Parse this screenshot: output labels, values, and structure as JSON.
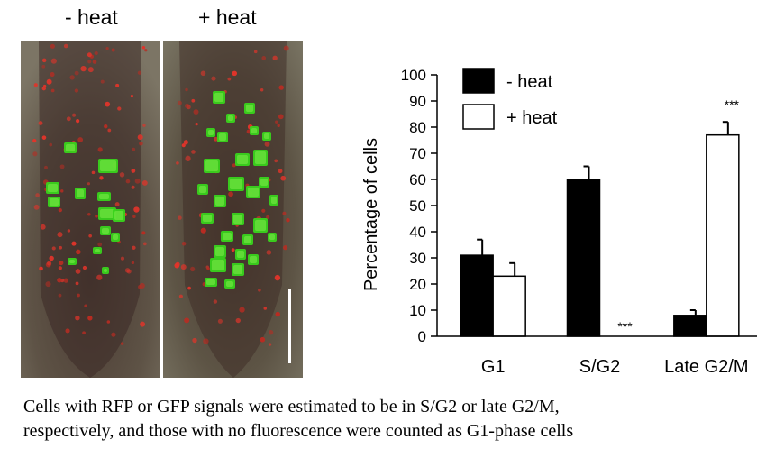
{
  "panels": {
    "left_label": "- heat",
    "right_label": "+ heat"
  },
  "chart_data": {
    "type": "bar",
    "categories": [
      "G1",
      "S/G2",
      "Late G2/M"
    ],
    "series": [
      {
        "name": "- heat",
        "values": [
          31,
          60,
          8
        ],
        "errors": [
          6,
          5,
          2
        ],
        "color": "#000000"
      },
      {
        "name": "+ heat",
        "values": [
          23,
          0,
          77
        ],
        "errors": [
          5,
          0,
          5
        ],
        "color": "#ffffff"
      }
    ],
    "significance": [
      {
        "category": "S/G2",
        "series": "+ heat",
        "label": "***"
      },
      {
        "category": "Late G2/M",
        "series": "+ heat",
        "label": "***"
      }
    ],
    "ylabel": "Percentage of cells",
    "xlabel": "",
    "ylim": [
      0,
      100
    ],
    "yticks": [
      0,
      10,
      20,
      30,
      40,
      50,
      60,
      70,
      80,
      90,
      100
    ],
    "legend": "top-left"
  },
  "caption": {
    "line1": "Cells with RFP or GFP signals were estimated to be in S/G2 or late G2/M,",
    "line2": "respectively, and those with no fluorescence were counted as G1-phase cells"
  }
}
